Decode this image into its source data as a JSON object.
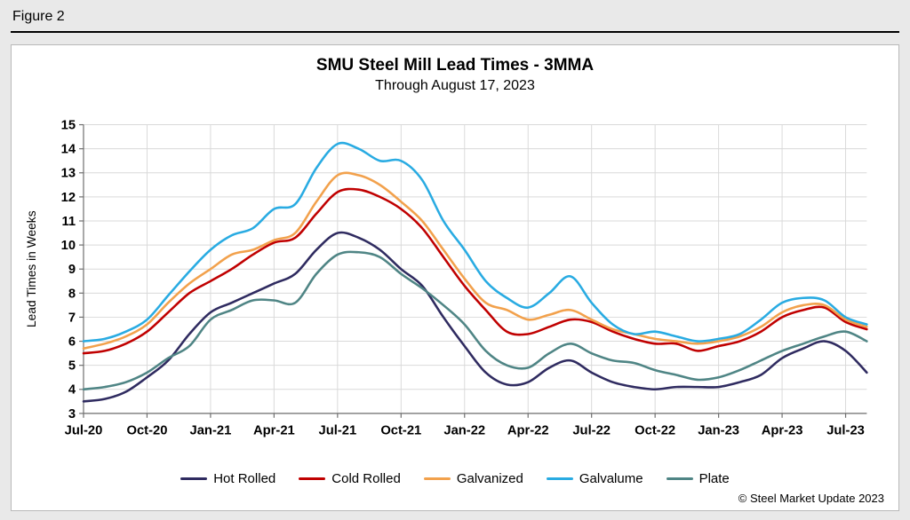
{
  "figure_label": "Figure 2",
  "footer": {
    "copyright": "© Steel Market Update 2023"
  },
  "chart_data": {
    "type": "line",
    "title": "SMU Steel Mill Lead Times - 3MMA",
    "subtitle": "Through August 17, 2023",
    "ylabel": "Lead Times in Weeks",
    "ylim": [
      3,
      15
    ],
    "ytick_step": 1,
    "grid": true,
    "legend_position": "bottom",
    "x_tick_interval": 3,
    "x_tick_labels": [
      "Jul-20",
      "Oct-20",
      "Jan-21",
      "Apr-21",
      "Jul-21",
      "Oct-21",
      "Jan-22",
      "Apr-22",
      "Jul-22",
      "Oct-22",
      "Jan-23",
      "Apr-23",
      "Jul-23"
    ],
    "x_months": [
      "Jul-20",
      "Aug-20",
      "Sep-20",
      "Oct-20",
      "Nov-20",
      "Dec-20",
      "Jan-21",
      "Feb-21",
      "Mar-21",
      "Apr-21",
      "May-21",
      "Jun-21",
      "Jul-21",
      "Aug-21",
      "Sep-21",
      "Oct-21",
      "Nov-21",
      "Dec-21",
      "Jan-22",
      "Feb-22",
      "Mar-22",
      "Apr-22",
      "May-22",
      "Jun-22",
      "Jul-22",
      "Aug-22",
      "Sep-22",
      "Oct-22",
      "Nov-22",
      "Dec-22",
      "Jan-23",
      "Feb-23",
      "Mar-23",
      "Apr-23",
      "May-23",
      "Jun-23",
      "Jul-23",
      "Aug-23"
    ],
    "series": [
      {
        "name": "Hot Rolled",
        "color": "#2f2b60",
        "values": [
          3.5,
          3.6,
          3.9,
          4.5,
          5.2,
          6.3,
          7.2,
          7.6,
          8.0,
          8.4,
          8.8,
          9.8,
          10.5,
          10.3,
          9.8,
          9.0,
          8.3,
          7.0,
          5.8,
          4.7,
          4.2,
          4.3,
          4.9,
          5.2,
          4.7,
          4.3,
          4.1,
          4.0,
          4.1,
          4.1,
          4.1,
          4.3,
          4.6,
          5.3,
          5.7,
          6.0,
          5.6,
          4.7
        ]
      },
      {
        "name": "Cold Rolled",
        "color": "#c00000",
        "values": [
          5.5,
          5.6,
          5.9,
          6.4,
          7.2,
          8.0,
          8.5,
          9.0,
          9.6,
          10.1,
          10.3,
          11.3,
          12.2,
          12.3,
          12.0,
          11.5,
          10.7,
          9.5,
          8.3,
          7.3,
          6.4,
          6.3,
          6.6,
          6.9,
          6.8,
          6.4,
          6.1,
          5.9,
          5.9,
          5.6,
          5.8,
          6.0,
          6.4,
          7.0,
          7.3,
          7.4,
          6.8,
          6.5
        ]
      },
      {
        "name": "Galvanized",
        "color": "#f2a14c",
        "values": [
          5.7,
          5.9,
          6.2,
          6.7,
          7.6,
          8.4,
          9.0,
          9.6,
          9.8,
          10.2,
          10.5,
          11.8,
          12.9,
          12.9,
          12.5,
          11.8,
          11.0,
          9.8,
          8.6,
          7.6,
          7.3,
          6.9,
          7.1,
          7.3,
          6.9,
          6.5,
          6.3,
          6.1,
          6.0,
          5.9,
          6.0,
          6.2,
          6.6,
          7.2,
          7.5,
          7.5,
          6.9,
          6.6
        ]
      },
      {
        "name": "Galvalume",
        "color": "#29abe2",
        "values": [
          6.0,
          6.1,
          6.4,
          6.9,
          7.9,
          8.9,
          9.8,
          10.4,
          10.7,
          11.5,
          11.7,
          13.2,
          14.2,
          14.0,
          13.5,
          13.5,
          12.7,
          11.0,
          9.8,
          8.5,
          7.8,
          7.4,
          8.0,
          8.7,
          7.6,
          6.7,
          6.3,
          6.4,
          6.2,
          6.0,
          6.1,
          6.3,
          6.9,
          7.6,
          7.8,
          7.7,
          7.0,
          6.7
        ]
      },
      {
        "name": "Plate",
        "color": "#4f8585",
        "values": [
          4.0,
          4.1,
          4.3,
          4.7,
          5.3,
          5.8,
          6.9,
          7.3,
          7.7,
          7.7,
          7.6,
          8.8,
          9.6,
          9.7,
          9.5,
          8.8,
          8.2,
          7.5,
          6.7,
          5.6,
          5.0,
          4.9,
          5.5,
          5.9,
          5.5,
          5.2,
          5.1,
          4.8,
          4.6,
          4.4,
          4.5,
          4.8,
          5.2,
          5.6,
          5.9,
          6.2,
          6.4,
          6.0
        ]
      }
    ]
  }
}
